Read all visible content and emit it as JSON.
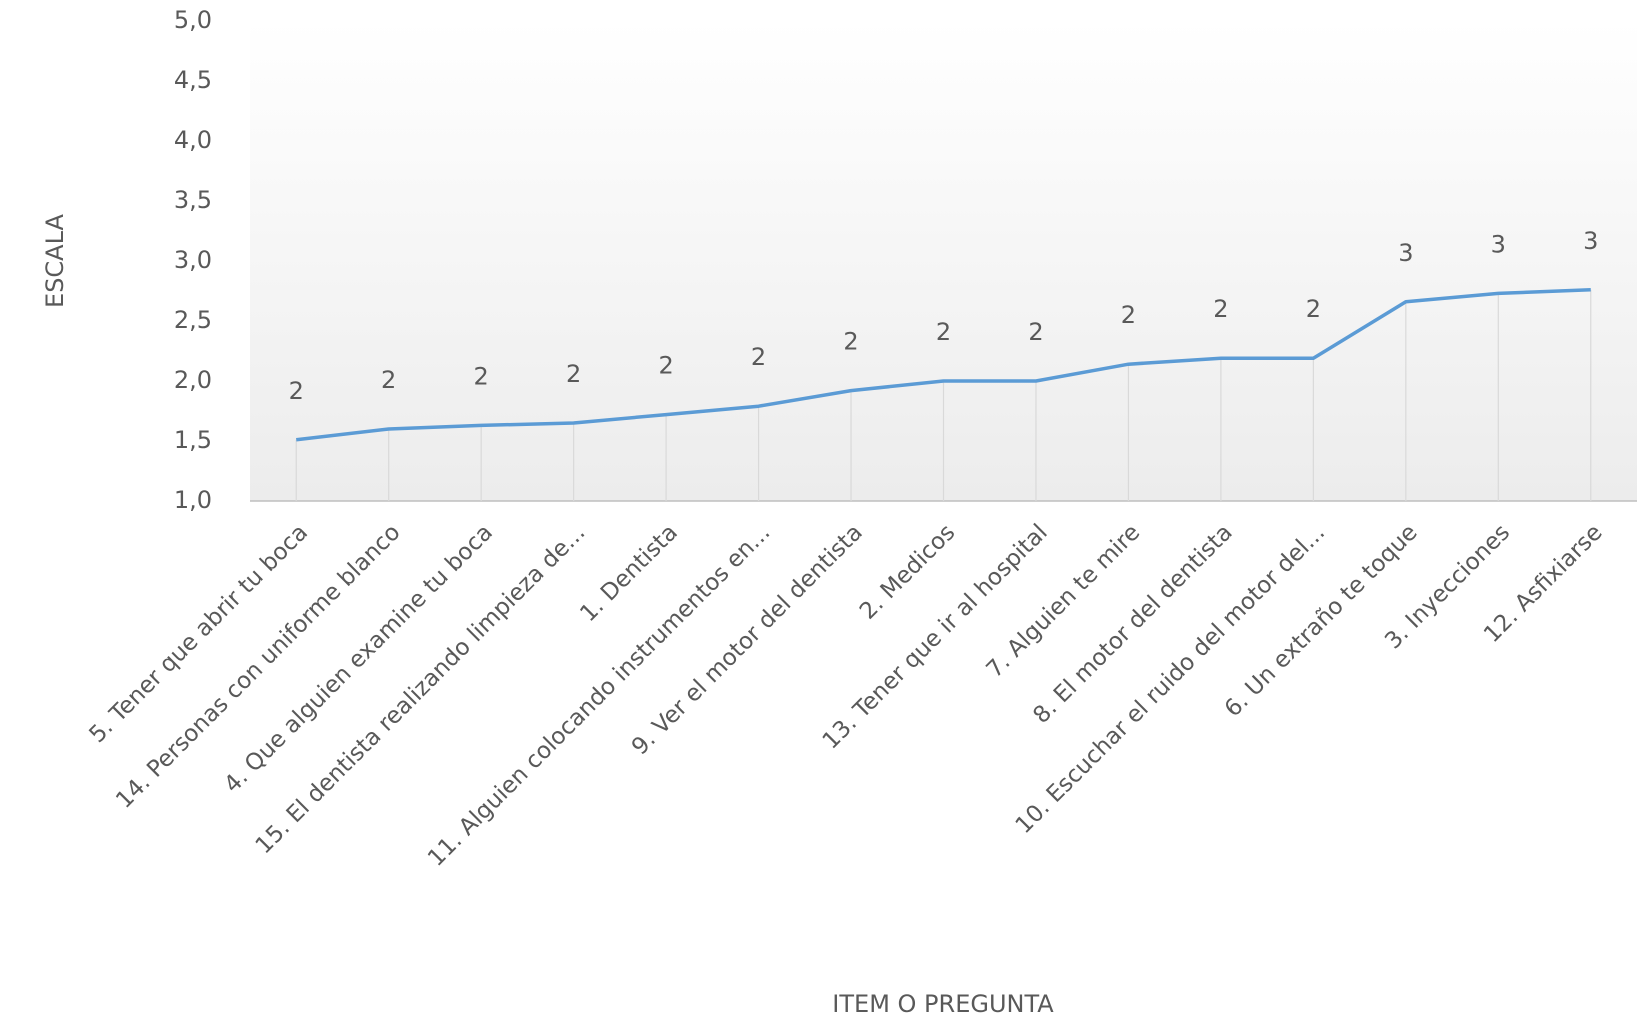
{
  "chart_data": {
    "type": "line",
    "x_label": "ITEM O PREGUNTA",
    "y_label": "ESCALA",
    "categories": [
      "5. Tener que abrir tu boca",
      "14. Personas con uniforme blanco",
      "4. Que alguien examine tu boca",
      "15. El dentista realizando limpieza de...",
      "1. Dentista",
      "11. Alguien colocando instrumentos en...",
      "9. Ver el motor del dentista",
      "2. Medicos",
      "13. Tener que ir al hospital",
      "7. Alguien te mire",
      "8. El motor del dentista",
      "10. Escuchar el ruido del motor del...",
      "6. Un extraño te toque",
      "3. Inyecciones",
      "12. Asfixiarse"
    ],
    "series": [
      {
        "name": "ESCALA",
        "color": "#5b9bd5",
        "values": [
          1.51,
          1.6,
          1.63,
          1.65,
          1.72,
          1.79,
          1.92,
          2.0,
          2.0,
          2.14,
          2.19,
          2.19,
          2.66,
          2.73,
          2.76
        ],
        "value_labels": [
          "2",
          "2",
          "2",
          "2",
          "2",
          "2",
          "2",
          "2",
          "2",
          "2",
          "2",
          "2",
          "3",
          "3",
          "3"
        ]
      }
    ],
    "ylim": [
      1,
      5
    ],
    "yticks": [
      {
        "value": 1,
        "label": "1,0"
      },
      {
        "value": 1.5,
        "label": "1,5"
      },
      {
        "value": 2,
        "label": "2,0"
      },
      {
        "value": 2.5,
        "label": "2,5"
      },
      {
        "value": 3,
        "label": "3,0"
      },
      {
        "value": 3.5,
        "label": "3,5"
      },
      {
        "value": 4,
        "label": "4,0"
      },
      {
        "value": 4.5,
        "label": "4,5"
      },
      {
        "value": 5,
        "label": "5,0"
      }
    ]
  }
}
